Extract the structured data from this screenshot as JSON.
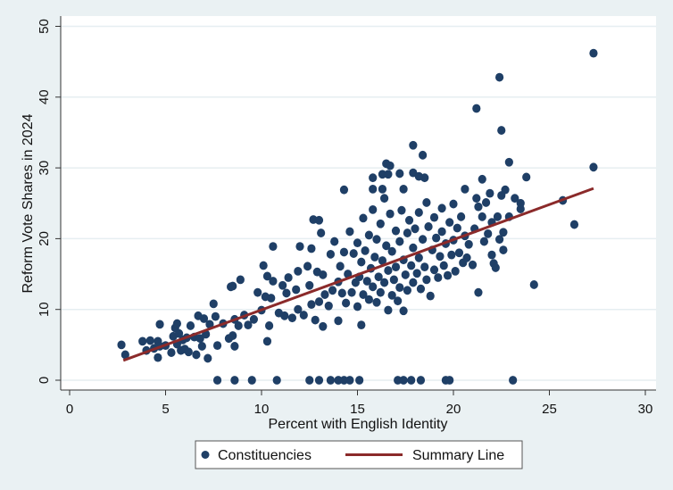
{
  "chart_data": {
    "type": "scatter",
    "title": "",
    "xlabel": "Percent with English Identity",
    "ylabel": "Reform Vote Shares in 2024",
    "xlim": [
      0,
      30
    ],
    "ylim": [
      0,
      50
    ],
    "xticks": [
      0,
      5,
      10,
      15,
      20,
      25,
      30
    ],
    "yticks": [
      0,
      10,
      20,
      30,
      40,
      50
    ],
    "grid": "horizontal",
    "legend_position": "bottom",
    "colors": {
      "points": "#1f3f66",
      "line": "#8b2a2a",
      "background": "#eaf1f3",
      "plot": "#ffffff"
    },
    "series": [
      {
        "name": "Constituencies",
        "kind": "scatter",
        "points": [
          [
            27.3,
            46.2
          ],
          [
            22.4,
            42.8
          ],
          [
            21.2,
            38.4
          ],
          [
            22.5,
            35.3
          ],
          [
            17.9,
            33.2
          ],
          [
            18.4,
            31.8
          ],
          [
            22.9,
            30.8
          ],
          [
            27.3,
            30.1
          ],
          [
            16.5,
            30.6
          ],
          [
            16.7,
            30.3
          ],
          [
            16.6,
            29.1
          ],
          [
            23.8,
            28.7
          ],
          [
            21.5,
            28.4
          ],
          [
            15.8,
            28.6
          ],
          [
            16.3,
            29.1
          ],
          [
            17.9,
            29.3
          ],
          [
            18.5,
            28.6
          ],
          [
            18.2,
            28.8
          ],
          [
            17.2,
            29.2
          ],
          [
            15.8,
            27.0
          ],
          [
            16.3,
            27.0
          ],
          [
            14.3,
            26.9
          ],
          [
            20.6,
            27.0
          ],
          [
            17.4,
            27.0
          ],
          [
            25.7,
            25.4
          ],
          [
            26.3,
            22.0
          ],
          [
            24.2,
            13.5
          ],
          [
            21.3,
            12.4
          ],
          [
            10.6,
            18.9
          ],
          [
            12.7,
            22.7
          ],
          [
            13.0,
            22.6
          ],
          [
            8.9,
            14.2
          ],
          [
            8.4,
            13.2
          ],
          [
            8.5,
            13.3
          ],
          [
            10.3,
            5.5
          ],
          [
            7.2,
            3.1
          ],
          [
            4.6,
            3.2
          ],
          [
            2.7,
            5.0
          ],
          [
            2.9,
            3.6
          ],
          [
            7.7,
            0
          ],
          [
            8.6,
            0
          ],
          [
            9.5,
            0
          ],
          [
            10.8,
            0
          ],
          [
            12.5,
            0
          ],
          [
            13.0,
            0
          ],
          [
            13.6,
            0
          ],
          [
            14.0,
            0
          ],
          [
            14.3,
            0
          ],
          [
            14.6,
            0
          ],
          [
            15.1,
            0
          ],
          [
            17.1,
            0
          ],
          [
            17.4,
            0
          ],
          [
            17.8,
            0
          ],
          [
            18.3,
            0
          ],
          [
            19.6,
            0
          ],
          [
            19.8,
            0
          ],
          [
            23.1,
            0
          ],
          [
            3.8,
            5.5
          ],
          [
            4.0,
            4.2
          ],
          [
            4.2,
            5.6
          ],
          [
            4.4,
            4.5
          ],
          [
            4.6,
            5.5
          ],
          [
            4.7,
            7.9
          ],
          [
            4.7,
            4.8
          ],
          [
            5.0,
            4.9
          ],
          [
            5.3,
            3.9
          ],
          [
            5.4,
            6.2
          ],
          [
            5.5,
            7.4
          ],
          [
            5.6,
            8.0
          ],
          [
            5.6,
            5.1
          ],
          [
            5.7,
            6.6
          ],
          [
            5.8,
            4.2
          ],
          [
            5.9,
            5.7
          ],
          [
            6.0,
            4.4
          ],
          [
            6.1,
            6.0
          ],
          [
            6.2,
            4.0
          ],
          [
            6.3,
            7.7
          ],
          [
            6.5,
            6.1
          ],
          [
            6.6,
            3.6
          ],
          [
            6.7,
            9.1
          ],
          [
            6.8,
            5.9
          ],
          [
            6.9,
            4.8
          ],
          [
            7.0,
            8.7
          ],
          [
            7.1,
            6.5
          ],
          [
            7.3,
            7.9
          ],
          [
            7.5,
            10.8
          ],
          [
            7.6,
            9.0
          ],
          [
            7.7,
            4.9
          ],
          [
            8.0,
            8.0
          ],
          [
            8.3,
            5.9
          ],
          [
            8.5,
            6.3
          ],
          [
            8.6,
            8.6
          ],
          [
            8.6,
            4.8
          ],
          [
            8.8,
            7.7
          ],
          [
            9.1,
            9.2
          ],
          [
            9.3,
            7.8
          ],
          [
            9.6,
            8.6
          ],
          [
            9.8,
            12.4
          ],
          [
            10.0,
            9.9
          ],
          [
            10.1,
            16.2
          ],
          [
            10.2,
            11.8
          ],
          [
            10.3,
            14.7
          ],
          [
            10.4,
            7.7
          ],
          [
            10.5,
            11.6
          ],
          [
            10.6,
            14.0
          ],
          [
            10.9,
            9.5
          ],
          [
            11.1,
            13.4
          ],
          [
            11.2,
            9.1
          ],
          [
            11.3,
            12.3
          ],
          [
            11.4,
            14.5
          ],
          [
            11.6,
            8.8
          ],
          [
            11.8,
            12.8
          ],
          [
            11.9,
            15.4
          ],
          [
            11.9,
            10.0
          ],
          [
            12.0,
            18.9
          ],
          [
            12.2,
            9.2
          ],
          [
            12.4,
            16.1
          ],
          [
            12.5,
            13.4
          ],
          [
            12.6,
            10.7
          ],
          [
            12.6,
            18.6
          ],
          [
            12.8,
            8.5
          ],
          [
            12.9,
            15.3
          ],
          [
            13.0,
            11.1
          ],
          [
            13.1,
            20.8
          ],
          [
            13.2,
            7.6
          ],
          [
            13.2,
            14.9
          ],
          [
            13.3,
            12.1
          ],
          [
            13.5,
            10.5
          ],
          [
            13.6,
            17.8
          ],
          [
            13.7,
            12.7
          ],
          [
            13.8,
            19.6
          ],
          [
            14.0,
            13.9
          ],
          [
            14.0,
            8.4
          ],
          [
            14.1,
            16.1
          ],
          [
            14.2,
            12.3
          ],
          [
            14.3,
            18.1
          ],
          [
            14.4,
            10.9
          ],
          [
            14.5,
            15.0
          ],
          [
            14.6,
            21.0
          ],
          [
            14.7,
            12.4
          ],
          [
            14.8,
            17.9
          ],
          [
            14.9,
            13.8
          ],
          [
            15.0,
            19.4
          ],
          [
            15.0,
            10.4
          ],
          [
            15.1,
            14.6
          ],
          [
            15.2,
            7.8
          ],
          [
            15.2,
            16.7
          ],
          [
            15.3,
            22.9
          ],
          [
            15.3,
            12.1
          ],
          [
            15.4,
            18.3
          ],
          [
            15.5,
            14.0
          ],
          [
            15.6,
            11.4
          ],
          [
            15.6,
            20.5
          ],
          [
            15.7,
            15.8
          ],
          [
            15.8,
            13.2
          ],
          [
            15.8,
            24.1
          ],
          [
            15.9,
            17.4
          ],
          [
            16.0,
            11.0
          ],
          [
            16.0,
            19.9
          ],
          [
            16.1,
            14.6
          ],
          [
            16.2,
            22.1
          ],
          [
            16.2,
            12.4
          ],
          [
            16.3,
            16.9
          ],
          [
            16.4,
            25.7
          ],
          [
            16.4,
            13.8
          ],
          [
            16.5,
            19.0
          ],
          [
            16.6,
            9.9
          ],
          [
            16.6,
            15.5
          ],
          [
            16.7,
            23.5
          ],
          [
            16.8,
            12.0
          ],
          [
            16.8,
            18.2
          ],
          [
            16.9,
            14.2
          ],
          [
            17.0,
            21.1
          ],
          [
            17.0,
            16.0
          ],
          [
            17.1,
            11.2
          ],
          [
            17.2,
            19.6
          ],
          [
            17.2,
            13.1
          ],
          [
            17.3,
            24.0
          ],
          [
            17.4,
            9.8
          ],
          [
            17.4,
            17.0
          ],
          [
            17.5,
            14.9
          ],
          [
            17.6,
            20.8
          ],
          [
            17.6,
            12.7
          ],
          [
            17.7,
            22.6
          ],
          [
            17.8,
            16.2
          ],
          [
            17.9,
            18.7
          ],
          [
            17.9,
            13.8
          ],
          [
            18.0,
            21.4
          ],
          [
            18.1,
            15.1
          ],
          [
            18.2,
            23.7
          ],
          [
            18.2,
            17.3
          ],
          [
            18.3,
            12.9
          ],
          [
            18.4,
            19.9
          ],
          [
            18.5,
            16.0
          ],
          [
            18.6,
            25.1
          ],
          [
            18.6,
            14.2
          ],
          [
            18.7,
            21.7
          ],
          [
            18.8,
            11.9
          ],
          [
            18.9,
            18.4
          ],
          [
            19.0,
            15.6
          ],
          [
            19.0,
            23.0
          ],
          [
            19.1,
            20.1
          ],
          [
            19.2,
            14.5
          ],
          [
            19.3,
            17.5
          ],
          [
            19.4,
            24.3
          ],
          [
            19.4,
            21.0
          ],
          [
            19.5,
            16.2
          ],
          [
            19.6,
            19.3
          ],
          [
            19.7,
            14.8
          ],
          [
            19.8,
            22.3
          ],
          [
            19.9,
            17.7
          ],
          [
            20.0,
            24.9
          ],
          [
            20.0,
            19.8
          ],
          [
            20.1,
            15.4
          ],
          [
            20.2,
            21.5
          ],
          [
            20.3,
            18.0
          ],
          [
            20.4,
            23.1
          ],
          [
            20.5,
            16.6
          ],
          [
            20.6,
            20.4
          ],
          [
            20.7,
            17.3
          ],
          [
            20.8,
            19.2
          ],
          [
            21.0,
            16.3
          ],
          [
            21.1,
            21.4
          ],
          [
            21.2,
            25.7
          ],
          [
            21.3,
            24.5
          ],
          [
            21.5,
            23.1
          ],
          [
            21.6,
            19.6
          ],
          [
            21.7,
            25.1
          ],
          [
            21.8,
            20.7
          ],
          [
            21.9,
            26.4
          ],
          [
            22.0,
            17.7
          ],
          [
            22.0,
            22.3
          ],
          [
            22.1,
            16.5
          ],
          [
            22.2,
            15.9
          ],
          [
            22.3,
            23.1
          ],
          [
            22.4,
            19.9
          ],
          [
            22.5,
            26.1
          ],
          [
            22.6,
            18.4
          ],
          [
            22.6,
            20.9
          ],
          [
            22.7,
            26.9
          ],
          [
            22.9,
            23.1
          ],
          [
            23.2,
            25.7
          ],
          [
            23.5,
            24.2
          ],
          [
            23.5,
            25.0
          ]
        ]
      },
      {
        "name": "Summary Line",
        "kind": "line",
        "points": [
          [
            2.8,
            2.8
          ],
          [
            27.3,
            27.1
          ]
        ]
      }
    ],
    "legend": [
      "Constituencies",
      "Summary Line"
    ]
  }
}
